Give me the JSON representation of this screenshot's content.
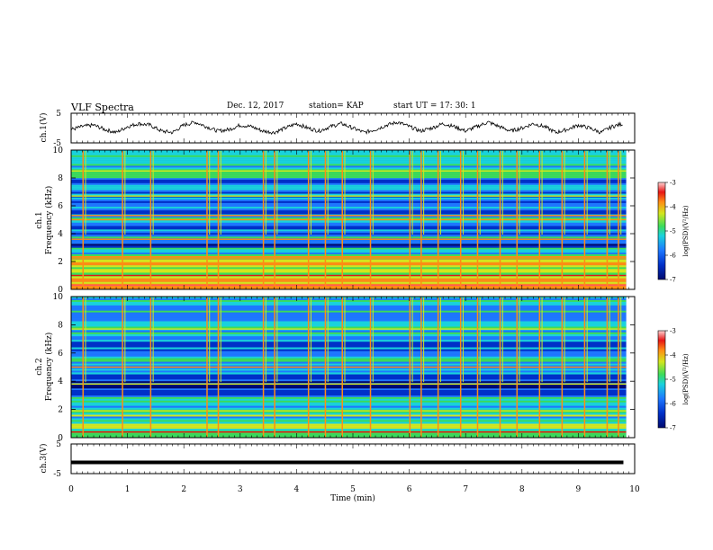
{
  "header": {
    "title": "VLF Spectra",
    "date": "Dec. 12, 2017",
    "station": "station= KAP",
    "start": "start  UT  =   17: 30: 1"
  },
  "colors": {
    "waveform": "#000000",
    "colormap": [
      "#000a6e",
      "#0030c8",
      "#1e78ff",
      "#19d2dc",
      "#3cdc5a",
      "#d2e61e",
      "#ff8c14",
      "#e61414",
      "#ff5a5a",
      "#ffd2d2"
    ]
  },
  "chart_data": [
    {
      "type": "line",
      "panel": "ch1-waveform",
      "ylabel": "ch.1(V)",
      "ylim": [
        -5,
        5
      ],
      "ytick_labels": [
        "5",
        "-5"
      ],
      "xlim": [
        0,
        10
      ],
      "grid": false,
      "series": [
        {
          "x": [
            0,
            0.2,
            0.4,
            0.6,
            0.8,
            1.0,
            1.2,
            1.4,
            1.6,
            1.8,
            2.0,
            2.2,
            2.4,
            2.6,
            2.8,
            3.0,
            3.2,
            3.4,
            3.6,
            3.8,
            4.0,
            4.2,
            4.4,
            4.6,
            4.8,
            5.0,
            5.2,
            5.4,
            5.6,
            5.8,
            6.0,
            6.2,
            6.4,
            6.6,
            6.8,
            7.0,
            7.2,
            7.4,
            7.6,
            7.8,
            8.0,
            8.2,
            8.4,
            8.6,
            8.8,
            9.0,
            9.2,
            9.4,
            9.6,
            9.8
          ],
          "y": [
            -0.5,
            0.5,
            1.0,
            -0.5,
            -1.5,
            0.5,
            1.5,
            1.0,
            -1.0,
            -1.5,
            1.0,
            2.0,
            0.5,
            -1.0,
            -0.5,
            1.0,
            0.5,
            -1.0,
            -1.5,
            0.0,
            1.5,
            0.0,
            -1.0,
            0.5,
            1.5,
            0.0,
            -1.5,
            -0.5,
            1.0,
            2.0,
            0.5,
            -1.0,
            0.0,
            1.5,
            0.5,
            -1.0,
            0.5,
            2.0,
            0.5,
            -1.0,
            0.0,
            1.5,
            0.5,
            -1.5,
            -0.5,
            1.0,
            0.0,
            -1.5,
            0.5,
            1.5
          ]
        }
      ]
    },
    {
      "type": "heatmap",
      "panel": "ch1-spectrogram",
      "ylabel": "ch.1 Frequency (kHz)",
      "ylim": [
        0,
        10
      ],
      "yticks": [
        0,
        2,
        4,
        6,
        8,
        10
      ],
      "xlim": [
        0,
        10
      ],
      "colorbar": {
        "label": "log(PSD)(V²/Hz)",
        "range": [
          -7,
          -3
        ],
        "ticks": [
          -3,
          -4,
          -5,
          -6,
          -7
        ]
      },
      "bands": [
        {
          "f": [
            0,
            0.8
          ],
          "level": -4.2
        },
        {
          "f": [
            0.8,
            1.6
          ],
          "level": -5.0
        },
        {
          "f": [
            1.6,
            2.4
          ],
          "level": -4.6
        },
        {
          "f": [
            2.4,
            3.0
          ],
          "level": -5.5
        },
        {
          "f": [
            3.0,
            3.4
          ],
          "level": -6.4
        },
        {
          "f": [
            3.4,
            3.8
          ],
          "level": -5.9
        },
        {
          "f": [
            3.8,
            4.8
          ],
          "level": -6.2
        },
        {
          "f": [
            4.8,
            5.4
          ],
          "level": -5.6
        },
        {
          "f": [
            5.4,
            7.0
          ],
          "level": -6.1
        },
        {
          "f": [
            7.0,
            8.0
          ],
          "level": -6.0
        },
        {
          "f": [
            8.0,
            10.0
          ],
          "level": -5.6
        }
      ],
      "lines": [
        {
          "f": 0.3,
          "level": -3.6
        },
        {
          "f": 1.0,
          "level": -3.8
        },
        {
          "f": 1.9,
          "level": -4.2
        },
        {
          "f": 2.2,
          "level": -4.4
        },
        {
          "f": 3.6,
          "level": -4.5
        },
        {
          "f": 5.0,
          "level": -4.3
        },
        {
          "f": 5.3,
          "level": -4.4
        },
        {
          "f": 6.7,
          "level": -4.8
        },
        {
          "f": 8.5,
          "level": -5.0
        }
      ],
      "bursts": [
        0.2,
        0.9,
        1.4,
        2.4,
        2.6,
        3.4,
        3.6,
        4.2,
        4.5,
        4.8,
        5.3,
        6.0,
        6.2,
        6.5,
        6.9,
        7.2,
        7.6,
        7.9,
        8.3,
        8.7,
        9.1,
        9.5,
        9.7
      ]
    },
    {
      "type": "heatmap",
      "panel": "ch2-spectrogram",
      "ylabel": "ch.2 Frequency (kHz)",
      "ylim": [
        0,
        10
      ],
      "yticks": [
        0,
        2,
        4,
        6,
        8,
        10
      ],
      "xlim": [
        0,
        10
      ],
      "colorbar": {
        "label": "log(PSD)(V²/Hz)",
        "range": [
          -7,
          -3
        ],
        "ticks": [
          -3,
          -4,
          -5,
          -6,
          -7
        ]
      },
      "bands": [
        {
          "f": [
            0,
            1.0
          ],
          "level": -5.0
        },
        {
          "f": [
            1.0,
            2.0
          ],
          "level": -5.4
        },
        {
          "f": [
            2.0,
            3.0
          ],
          "level": -5.8
        },
        {
          "f": [
            3.0,
            3.5
          ],
          "level": -6.3
        },
        {
          "f": [
            3.5,
            4.5
          ],
          "level": -6.6
        },
        {
          "f": [
            4.5,
            6.0
          ],
          "level": -5.7
        },
        {
          "f": [
            6.0,
            7.2
          ],
          "level": -6.0
        },
        {
          "f": [
            7.2,
            8.0
          ],
          "level": -5.4
        },
        {
          "f": [
            8.0,
            10.0
          ],
          "level": -5.8
        }
      ],
      "lines": [
        {
          "f": 0.4,
          "level": -4.0
        },
        {
          "f": 1.9,
          "level": -4.6
        },
        {
          "f": 3.8,
          "level": -4.8
        },
        {
          "f": 5.0,
          "level": -4.5
        },
        {
          "f": 7.7,
          "level": -5.0
        }
      ],
      "bursts": [
        0.2,
        0.9,
        1.4,
        2.4,
        2.6,
        3.4,
        3.6,
        4.2,
        4.5,
        4.8,
        5.3,
        6.0,
        6.2,
        6.5,
        6.9,
        7.2,
        7.6,
        7.9,
        8.3,
        8.7,
        9.1,
        9.5,
        9.7
      ]
    },
    {
      "type": "line",
      "panel": "ch3-waveform",
      "ylabel": "ch.3(V)",
      "ylim": [
        -5,
        5
      ],
      "ytick_labels": [
        "5",
        "-5"
      ],
      "xlim": [
        0,
        10
      ],
      "series": [
        {
          "x": [
            0,
            9.8
          ],
          "y": [
            -1.2,
            -1.2
          ]
        }
      ]
    }
  ],
  "xaxis": {
    "label": "Time  (min)",
    "ticks": [
      0,
      1,
      2,
      3,
      4,
      5,
      6,
      7,
      8,
      9,
      10
    ],
    "tick_labels": [
      "0",
      "1",
      "2",
      "3",
      "4",
      "5",
      "6",
      "7",
      "8",
      "9",
      "10"
    ]
  },
  "labels": {
    "ch1_wave": "ch.1(V)",
    "ch1_spec_a": "ch.1",
    "ch1_spec_b": "Frequency  (kHz)",
    "ch2_spec_a": "ch.2",
    "ch2_spec_b": "Frequency  (kHz)",
    "ch3_wave": "ch.3(V)",
    "wave_top": "5",
    "wave_bottom": "-5",
    "cbar_label": "log(PSD)(V²/Hz)"
  }
}
